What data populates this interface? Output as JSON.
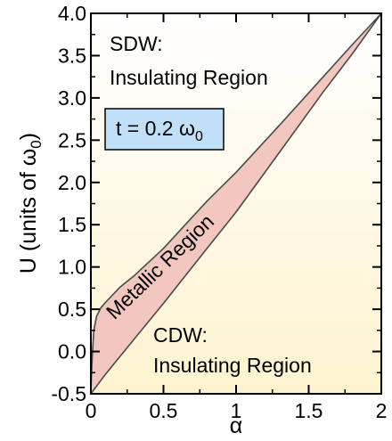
{
  "chart_data": {
    "type": "area",
    "xlabel": "α",
    "ylabel": "U (units of ω",
    "ylabel_sub": "0",
    "ylabel_close": ")",
    "xlim": [
      0,
      2
    ],
    "ylim": [
      -0.5,
      4.0
    ],
    "x_ticks": [
      "0",
      "0.5",
      "1",
      "1.5",
      "2"
    ],
    "x_tick_values": [
      0,
      0.5,
      1,
      1.5,
      2
    ],
    "y_ticks": [
      "-0.5",
      "0.0",
      "0.5",
      "1.0",
      "1.5",
      "2.0",
      "2.5",
      "3.0",
      "3.5",
      "4.0"
    ],
    "y_tick_values": [
      -0.5,
      0.0,
      0.5,
      1.0,
      1.5,
      2.0,
      2.5,
      3.0,
      3.5,
      4.0
    ],
    "grid": false,
    "annotation_box": {
      "text": "t = 0.2 ω",
      "sub": "0",
      "fill": "#bfe0f8"
    },
    "regions": [
      {
        "name": "SDW",
        "line1": "SDW:",
        "line2": "Insulating Region"
      },
      {
        "name": "Metallic",
        "label": "Metallic Region",
        "fill": "#f2c7bf"
      },
      {
        "name": "CDW",
        "line1": "CDW:",
        "line2": "Insulating Region"
      }
    ],
    "series": [
      {
        "boundary": "upper",
        "x": [
          0,
          0.01,
          0.02,
          0.04,
          0.07,
          0.1,
          0.15,
          0.2,
          0.3,
          0.5,
          0.8,
          1.0,
          1.3,
          1.6,
          1.8,
          2.0
        ],
        "y": [
          -0.45,
          -0.05,
          0.25,
          0.42,
          0.52,
          0.58,
          0.67,
          0.76,
          0.9,
          1.22,
          1.78,
          2.12,
          2.68,
          3.25,
          3.63,
          4.0
        ]
      },
      {
        "boundary": "lower",
        "x": [
          0,
          0.1,
          0.2,
          0.3,
          0.5,
          0.8,
          1.0,
          1.3,
          1.6,
          1.8,
          2.0
        ],
        "y": [
          -0.5,
          -0.27,
          -0.06,
          0.15,
          0.57,
          1.22,
          1.65,
          2.36,
          3.07,
          3.52,
          4.0
        ]
      }
    ],
    "colors": {
      "background_top": "#ffffff",
      "background_bottom": "#fdf3cf",
      "band_fill": "#f2c7bf",
      "band_edge": "#4a4a4a"
    }
  }
}
